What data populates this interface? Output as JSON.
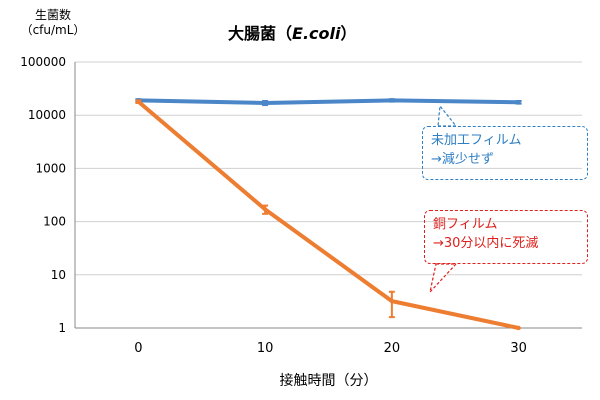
{
  "chart_data": {
    "type": "line",
    "title_main": "大腸菌（",
    "title_species": "E.coli",
    "title_tail": "）",
    "ylabel_line1": "生菌数",
    "ylabel_line2": "（cfu/mL）",
    "xlabel": "接触時間（分）",
    "x": [
      0,
      10,
      20,
      30
    ],
    "xlim": [
      -5,
      35
    ],
    "ylim": [
      1,
      100000
    ],
    "yscale": "log",
    "yticks": [
      1,
      10,
      100,
      1000,
      10000,
      100000
    ],
    "ytick_labels": [
      "1",
      "10",
      "100",
      "1000",
      "10000",
      "100000"
    ],
    "xticks": [
      0,
      10,
      20,
      30
    ],
    "xtick_labels": [
      "0",
      "10",
      "20",
      "30"
    ],
    "grid": "horizontal",
    "series": [
      {
        "key": "untreated",
        "color": "#4a86c8",
        "values": [
          19000,
          17000,
          19000,
          17500
        ],
        "err_low": [
          18000,
          15500,
          18000,
          16500
        ],
        "err_high": [
          20000,
          18500,
          20000,
          18500
        ]
      },
      {
        "key": "copper",
        "color": "#ed7d31",
        "values": [
          18000,
          170,
          3.2,
          1
        ],
        "err_low": [
          17000,
          140,
          1.6,
          1
        ],
        "err_high": [
          19000,
          200,
          4.8,
          1
        ]
      }
    ],
    "annotations": [
      {
        "key": "untreated",
        "color": "#2f7fc4",
        "line1": "未加工フィルム",
        "line2": "→減少せず"
      },
      {
        "key": "copper",
        "color": "#e0201c",
        "line1": "銅フィルム",
        "line2": "→30分以内に死滅"
      }
    ]
  }
}
